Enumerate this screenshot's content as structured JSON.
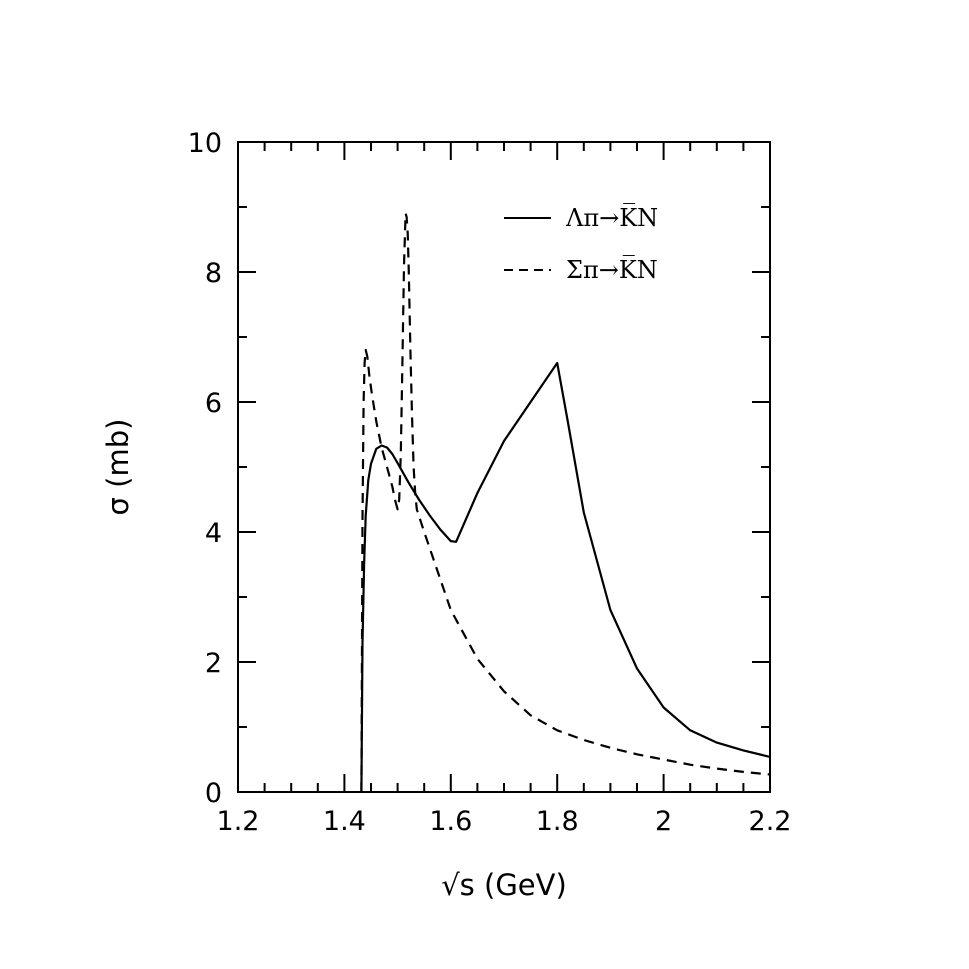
{
  "chart_data": {
    "type": "line",
    "xlabel": "√s (GeV)",
    "ylabel": "σ (mb)",
    "xlim": [
      1.2,
      2.2
    ],
    "ylim": [
      0,
      10
    ],
    "x_ticks": [
      1.2,
      1.4,
      1.6,
      1.8,
      2.0,
      2.2
    ],
    "x_tick_labels": [
      "1.2",
      "1.4",
      "1.6",
      "1.8",
      "2",
      "2.2"
    ],
    "y_ticks": [
      0,
      2,
      4,
      6,
      8,
      10
    ],
    "y_tick_labels": [
      "0",
      "2",
      "4",
      "6",
      "8",
      "10"
    ],
    "grid": false,
    "legend_position": "top-right",
    "series": [
      {
        "name": "Λπ→K̅N",
        "style": "solid",
        "color": "#000000",
        "x": [
          1.432,
          1.434,
          1.437,
          1.44,
          1.445,
          1.45,
          1.46,
          1.47,
          1.48,
          1.49,
          1.5,
          1.52,
          1.54,
          1.56,
          1.58,
          1.6,
          1.61,
          1.65,
          1.7,
          1.75,
          1.8,
          1.82,
          1.85,
          1.9,
          1.95,
          2.0,
          2.05,
          2.1,
          2.15,
          2.2
        ],
        "y": [
          0.0,
          2.3,
          3.5,
          4.25,
          4.8,
          5.05,
          5.28,
          5.33,
          5.3,
          5.2,
          5.06,
          4.77,
          4.5,
          4.26,
          4.04,
          3.86,
          3.85,
          4.6,
          5.4,
          6.0,
          6.6,
          5.7,
          4.3,
          2.8,
          1.9,
          1.3,
          0.95,
          0.76,
          0.64,
          0.54
        ]
      },
      {
        "name": "Σπ→K̅N",
        "style": "dashed",
        "color": "#000000",
        "x": [
          1.432,
          1.434,
          1.436,
          1.438,
          1.44,
          1.443,
          1.447,
          1.452,
          1.46,
          1.47,
          1.48,
          1.49,
          1.495,
          1.5,
          1.503,
          1.506,
          1.509,
          1.512,
          1.515,
          1.517,
          1.519,
          1.521,
          1.524,
          1.527,
          1.53,
          1.533,
          1.536,
          1.55,
          1.6,
          1.65,
          1.7,
          1.75,
          1.8,
          1.85,
          1.9,
          1.95,
          2.0,
          2.05,
          2.1,
          2.15,
          2.2
        ],
        "y": [
          0.0,
          4.2,
          6.0,
          6.6,
          6.8,
          6.7,
          6.4,
          6.1,
          5.7,
          5.3,
          5.0,
          4.7,
          4.5,
          4.35,
          4.5,
          5.2,
          6.6,
          8.1,
          8.9,
          8.85,
          8.6,
          8.0,
          6.8,
          5.8,
          5.0,
          4.6,
          4.35,
          4.0,
          2.8,
          2.05,
          1.55,
          1.18,
          0.95,
          0.8,
          0.68,
          0.58,
          0.5,
          0.42,
          0.36,
          0.31,
          0.27
        ]
      }
    ]
  }
}
